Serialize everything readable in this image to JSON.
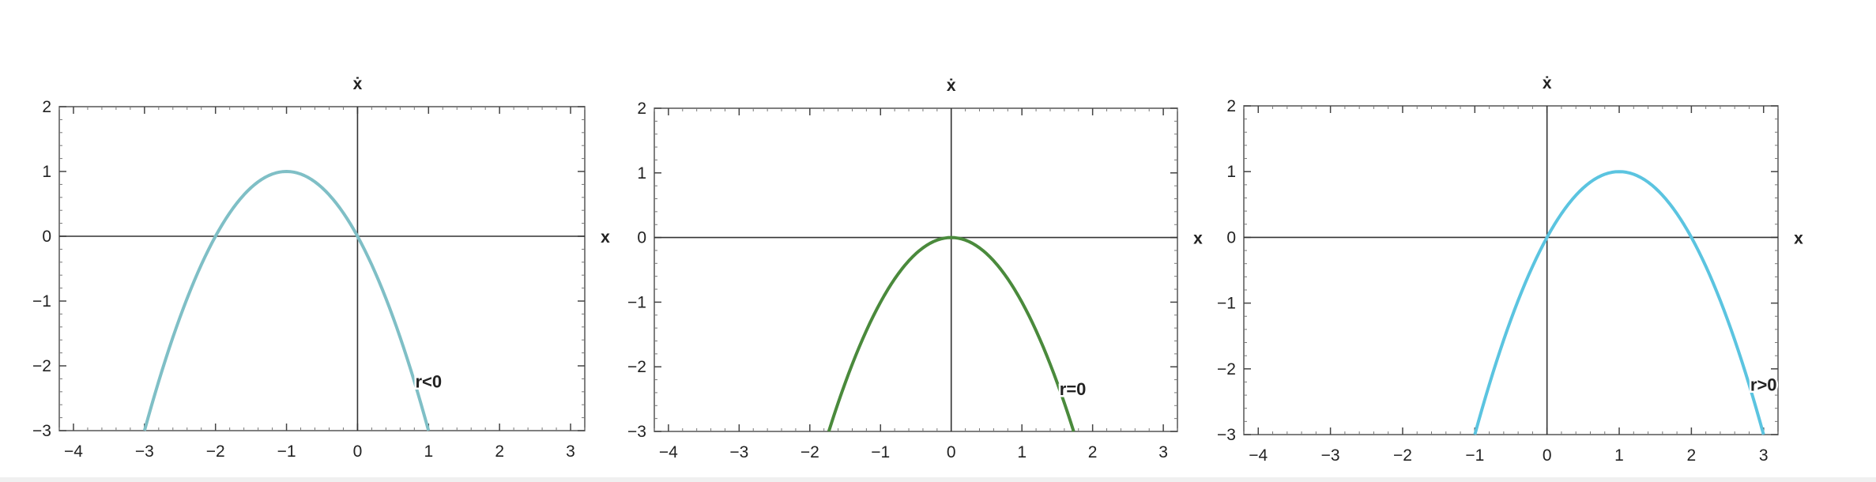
{
  "chart_data": [
    {
      "type": "line",
      "title": "",
      "xlabel": "x",
      "ylabel": "ẋ",
      "xlim": [
        -4.2,
        3.2
      ],
      "ylim": [
        -3,
        2
      ],
      "xticks": [
        -4,
        -3,
        -2,
        -1,
        0,
        1,
        2,
        3
      ],
      "yticks": [
        -3,
        -2,
        -1,
        0,
        1,
        2
      ],
      "xtick_labels": [
        "−4",
        "−3",
        "−2",
        "−1",
        "0",
        "1",
        "2",
        "3"
      ],
      "ytick_labels": [
        "−3",
        "−2",
        "−1",
        "0",
        "1",
        "2"
      ],
      "series": [
        {
          "name": "r<0",
          "color": "#7fbfc6",
          "x": [
            -3.0,
            -2.5,
            -2.0,
            -1.5,
            -1.0,
            -0.5,
            0.0,
            0.5,
            1.0
          ],
          "y": [
            -3.0,
            -1.25,
            0.0,
            0.75,
            1.0,
            0.75,
            0.0,
            -1.25,
            -3.0
          ]
        }
      ],
      "annotation": {
        "text": "r<0",
        "x": 1.0,
        "y": -2.25
      },
      "grid": false
    },
    {
      "type": "line",
      "title": "",
      "xlabel": "x",
      "ylabel": "ẋ",
      "xlim": [
        -4.2,
        3.2
      ],
      "ylim": [
        -3,
        2
      ],
      "xticks": [
        -4,
        -3,
        -2,
        -1,
        0,
        1,
        2,
        3
      ],
      "yticks": [
        -3,
        -2,
        -1,
        0,
        1,
        2
      ],
      "xtick_labels": [
        "−4",
        "−3",
        "−2",
        "−1",
        "0",
        "1",
        "2",
        "3"
      ],
      "ytick_labels": [
        "−3",
        "−2",
        "−1",
        "0",
        "1",
        "2"
      ],
      "series": [
        {
          "name": "r=0",
          "color": "#4a8a3c",
          "x": [
            -1.732,
            -1.5,
            -1.0,
            -0.5,
            0.0,
            0.5,
            1.0,
            1.5,
            1.732
          ],
          "y": [
            -3.0,
            -2.25,
            -1.0,
            -0.25,
            0.0,
            -0.25,
            -1.0,
            -2.25,
            -3.0
          ]
        }
      ],
      "annotation": {
        "text": "r=0",
        "x": 1.72,
        "y": -2.35
      },
      "grid": false
    },
    {
      "type": "line",
      "title": "",
      "xlabel": "x",
      "ylabel": "ẋ",
      "xlim": [
        -4.2,
        3.2
      ],
      "ylim": [
        -3,
        2
      ],
      "xticks": [
        -4,
        -3,
        -2,
        -1,
        0,
        1,
        2,
        3
      ],
      "yticks": [
        -3,
        -2,
        -1,
        0,
        1,
        2
      ],
      "xtick_labels": [
        "−4",
        "−3",
        "−2",
        "−1",
        "0",
        "1",
        "2",
        "3"
      ],
      "ytick_labels": [
        "−3",
        "−2",
        "−1",
        "0",
        "1",
        "2"
      ],
      "series": [
        {
          "name": "r>0",
          "color": "#5bc4e0",
          "x": [
            -1.0,
            -0.5,
            0.0,
            0.5,
            1.0,
            1.5,
            2.0,
            2.5,
            3.0
          ],
          "y": [
            -3.0,
            -1.25,
            0.0,
            0.75,
            1.0,
            0.75,
            0.0,
            -1.25,
            -3.0
          ]
        }
      ],
      "annotation": {
        "text": "r>0",
        "x": 3.0,
        "y": -2.25
      },
      "grid": false
    }
  ]
}
